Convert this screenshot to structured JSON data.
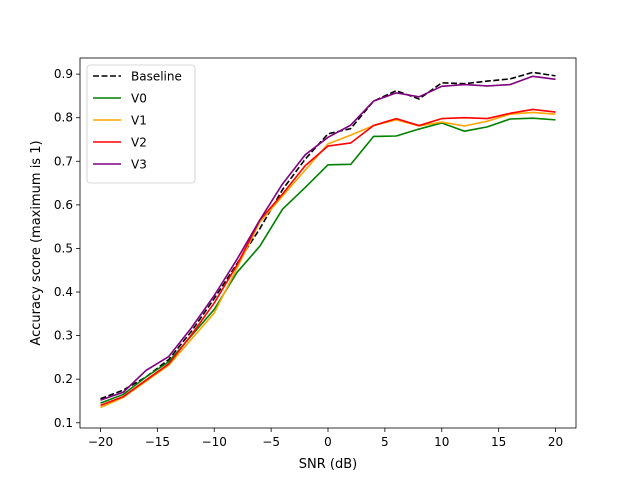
{
  "chart_data": {
    "type": "line",
    "title": "",
    "xlabel": "SNR (dB)",
    "ylabel": "Accuracy score (maximum is 1)",
    "xlim": [
      -21.8,
      21.8
    ],
    "ylim": [
      0.088,
      0.937
    ],
    "grid": false,
    "legend_position": "top-left",
    "x": [
      -20,
      -18,
      -16,
      -14,
      -12,
      -10,
      -8,
      -6,
      -4,
      -2,
      0,
      2,
      4,
      6,
      8,
      10,
      12,
      14,
      16,
      18,
      20
    ],
    "xticks": [
      -20,
      -15,
      -10,
      -5,
      0,
      5,
      10,
      15,
      20
    ],
    "xtick_labels": [
      "−20",
      "−15",
      "−10",
      "−5",
      "0",
      "5",
      "10",
      "15",
      "20"
    ],
    "yticks": [
      0.1,
      0.2,
      0.3,
      0.4,
      0.5,
      0.6,
      0.7,
      0.8,
      0.9
    ],
    "ytick_labels": [
      "0.1",
      "0.2",
      "0.3",
      "0.4",
      "0.5",
      "0.6",
      "0.7",
      "0.8",
      "0.9"
    ],
    "series": [
      {
        "name": "Baseline",
        "color": "#000000",
        "dash": "dashed",
        "values": [
          0.155,
          0.175,
          0.205,
          0.245,
          0.31,
          0.385,
          0.465,
          0.545,
          0.635,
          0.705,
          0.763,
          0.775,
          0.838,
          0.862,
          0.843,
          0.88,
          0.878,
          0.884,
          0.889,
          0.904,
          0.896
        ]
      },
      {
        "name": "V0",
        "color": "#008000",
        "dash": "solid",
        "values": [
          0.145,
          0.165,
          0.205,
          0.24,
          0.3,
          0.36,
          0.445,
          0.505,
          0.59,
          0.64,
          0.692,
          0.693,
          0.757,
          0.758,
          0.774,
          0.788,
          0.769,
          0.779,
          0.797,
          0.799,
          0.795
        ]
      },
      {
        "name": "V1",
        "color": "#ffa500",
        "dash": "solid",
        "values": [
          0.135,
          0.158,
          0.195,
          0.232,
          0.292,
          0.352,
          0.455,
          0.56,
          0.62,
          0.68,
          0.74,
          0.76,
          0.782,
          0.795,
          0.781,
          0.79,
          0.781,
          0.792,
          0.808,
          0.812,
          0.808
        ]
      },
      {
        "name": "V2",
        "color": "#ff0000",
        "dash": "solid",
        "values": [
          0.14,
          0.16,
          0.198,
          0.235,
          0.302,
          0.375,
          0.462,
          0.565,
          0.625,
          0.69,
          0.735,
          0.742,
          0.782,
          0.798,
          0.782,
          0.798,
          0.8,
          0.798,
          0.81,
          0.819,
          0.813
        ]
      },
      {
        "name": "V3",
        "color": "#800080",
        "dash": "solid",
        "values": [
          0.152,
          0.17,
          0.22,
          0.252,
          0.318,
          0.392,
          0.475,
          0.565,
          0.648,
          0.715,
          0.755,
          0.783,
          0.838,
          0.857,
          0.848,
          0.872,
          0.876,
          0.873,
          0.876,
          0.895,
          0.888
        ]
      }
    ]
  }
}
